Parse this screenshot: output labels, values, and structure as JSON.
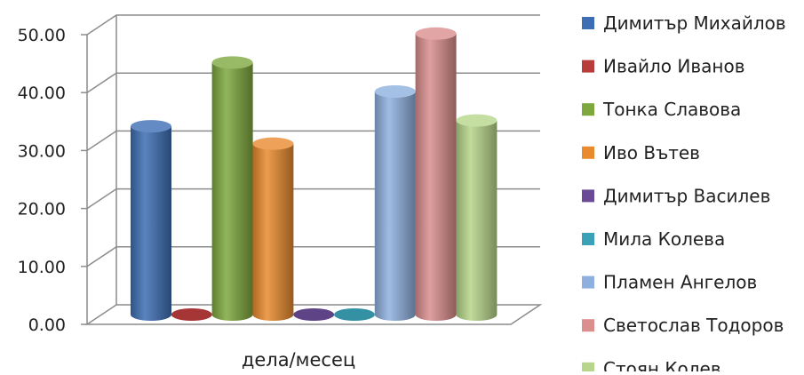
{
  "chart_data": {
    "type": "bar",
    "title": "",
    "xlabel": "дела/месец",
    "ylabel": "",
    "ylim": [
      0,
      50
    ],
    "yticks": [
      "0.00",
      "10.00",
      "20.00",
      "30.00",
      "40.00",
      "50.00"
    ],
    "grid": true,
    "legend_position": "right",
    "categories": [
      "дела/месец"
    ],
    "series": [
      {
        "name": "Димитър Михайлов",
        "values": [
          32.5
        ],
        "color": "#3d6eb4"
      },
      {
        "name": "Ивайло Иванов",
        "values": [
          0
        ],
        "color": "#b83c3c"
      },
      {
        "name": "Тонка Славова",
        "values": [
          43.5
        ],
        "color": "#7ea83e"
      },
      {
        "name": "Иво Вътев",
        "values": [
          29.5
        ],
        "color": "#e98a2f"
      },
      {
        "name": "Димитър Василев",
        "values": [
          0
        ],
        "color": "#6a4a96"
      },
      {
        "name": "Мила Колева",
        "values": [
          0
        ],
        "color": "#3aa1b6"
      },
      {
        "name": "Пламен Ангелов",
        "values": [
          38.5
        ],
        "color": "#8fb0de"
      },
      {
        "name": "Светослав Тодоров",
        "values": [
          48.5
        ],
        "color": "#db8e8e"
      },
      {
        "name": "Стоян Колев",
        "values": [
          33.5
        ],
        "color": "#b7d68b"
      }
    ]
  }
}
